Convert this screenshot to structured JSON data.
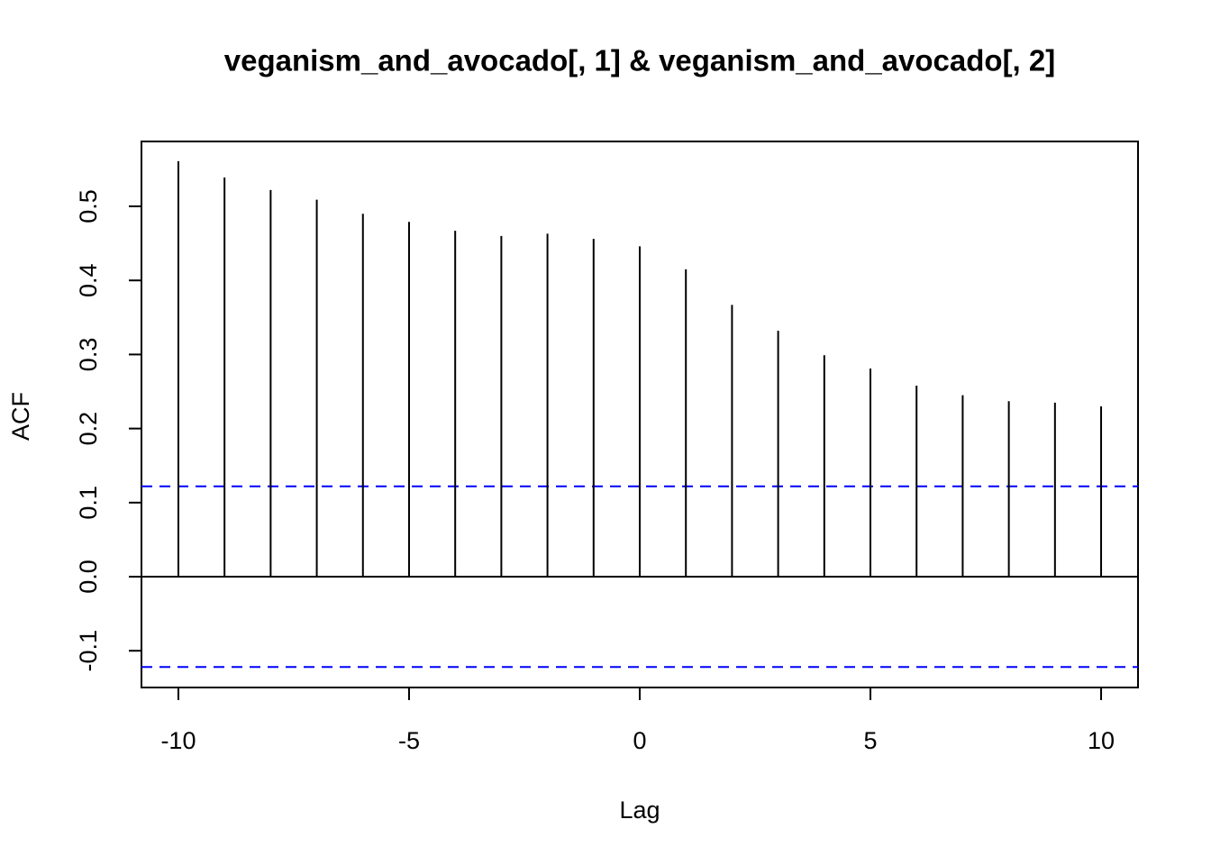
{
  "chart_data": {
    "type": "stem",
    "title": "veganism_and_avocado[, 1] & veganism_and_avocado[, 2]",
    "x_label": "Lag",
    "y_label": "ACF",
    "x": [
      -10,
      -9,
      -8,
      -7,
      -6,
      -5,
      -4,
      -3,
      -2,
      -1,
      0,
      1,
      2,
      3,
      4,
      5,
      6,
      7,
      8,
      9,
      10
    ],
    "values": [
      0.561,
      0.539,
      0.522,
      0.509,
      0.49,
      0.479,
      0.467,
      0.46,
      0.463,
      0.456,
      0.446,
      0.415,
      0.367,
      0.332,
      0.299,
      0.281,
      0.258,
      0.245,
      0.237,
      0.235,
      0.23
    ],
    "color": "#000000",
    "conf_limits": [
      -0.122,
      0.122
    ],
    "conf_color": "#0000ff",
    "xlim": [
      -10.8,
      10.8
    ],
    "xticks": [
      -10,
      -5,
      0,
      5,
      10
    ],
    "ylim": [
      -0.1496,
      0.5876
    ],
    "yticks": [
      -0.1,
      {
        "value": 0,
        "label": "0.0"
      },
      0.1,
      0.2,
      0.3,
      0.4,
      0.5
    ]
  }
}
